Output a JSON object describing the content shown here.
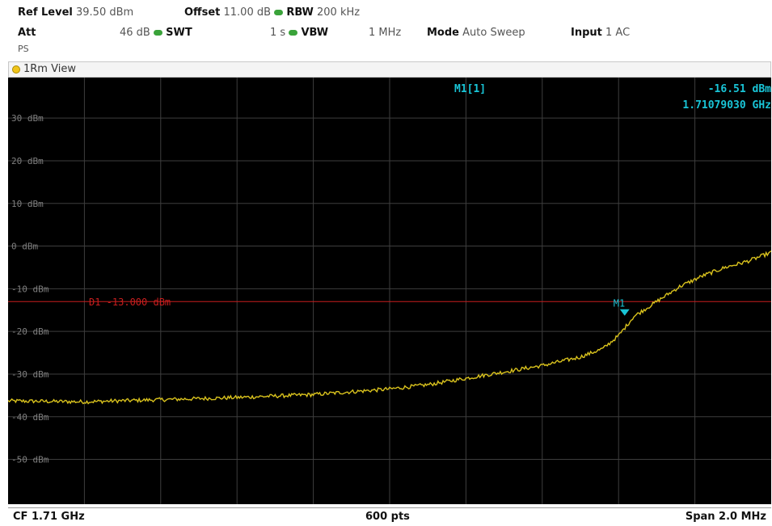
{
  "header": {
    "ref_level_label": "Ref Level",
    "ref_level_value": "39.50 dBm",
    "offset_label": "Offset",
    "offset_value": "11.00 dB",
    "rbw_label": "RBW",
    "rbw_value": "200 kHz",
    "att_label": "Att",
    "att_value": "46 dB",
    "swt_label": "SWT",
    "swt_value": "1 s",
    "vbw_label": "VBW",
    "vbw_value": "1 MHz",
    "mode_label": "Mode",
    "mode_value": "Auto Sweep",
    "input_label": "Input",
    "input_value": "1 AC",
    "ps_label": "PS"
  },
  "view_title": "1Rm View",
  "marker": {
    "name": "M1[1]",
    "level": "-16.51 dBm",
    "freq": "1.71079030 GHz",
    "tag": "M1",
    "x_frac": 0.808,
    "y_dbm": -16.51
  },
  "display_line": {
    "label": "D1  -13.000 dBm",
    "dbm": -13.0
  },
  "footer": {
    "cf": "CF 1.71 GHz",
    "pts": "600 pts",
    "span": "Span 2.0 MHz"
  },
  "colors": {
    "trace": "#d9c21d",
    "marker": "#19c4d6",
    "display_line": "#c81e1e",
    "grid": "#3e3e3e",
    "axis_label": "#7f7f7f"
  },
  "chart_data": {
    "type": "line",
    "y_ticks": [
      {
        "dbm": 30,
        "label": "30 dBm"
      },
      {
        "dbm": 20,
        "label": "20 dBm"
      },
      {
        "dbm": 10,
        "label": "10 dBm"
      },
      {
        "dbm": 0,
        "label": "0 dBm"
      },
      {
        "dbm": -10,
        "label": "-10 dBm"
      },
      {
        "dbm": -20,
        "label": "-20 dBm"
      },
      {
        "dbm": -30,
        "label": "-30 dBm"
      },
      {
        "dbm": -40,
        "label": "-40 dBm"
      },
      {
        "dbm": -50,
        "label": "-50 dBm"
      }
    ],
    "ylim": [
      -60.5,
      39.5
    ],
    "x_divisions": 10,
    "series": [
      {
        "x": [
          0,
          0.05,
          0.1,
          0.2,
          0.3,
          0.4,
          0.5,
          0.55,
          0.6,
          0.65,
          0.7,
          0.75,
          0.78,
          0.8,
          0.82,
          0.85,
          0.88,
          0.91,
          0.94,
          0.97,
          1.0
        ],
        "y": [
          -36.3,
          -36.4,
          -36.5,
          -36.0,
          -35.5,
          -34.8,
          -33.5,
          -32.5,
          -31.0,
          -29.5,
          -28.0,
          -26.0,
          -24.0,
          -21.0,
          -16.5,
          -13.0,
          -9.5,
          -7.0,
          -5.0,
          -3.5,
          -1.5
        ]
      }
    ]
  }
}
